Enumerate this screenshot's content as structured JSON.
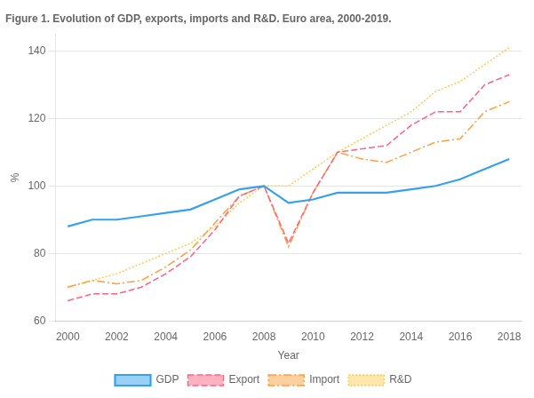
{
  "chart_data": {
    "type": "line",
    "title": "Figure 1. Evolution of GDP, exports, imports and R&D. Euro area, 2000-2019.",
    "x_label": "Year",
    "y_label": "%",
    "x": [
      2000,
      2001,
      2002,
      2003,
      2004,
      2005,
      2006,
      2007,
      2008,
      2009,
      2010,
      2011,
      2012,
      2013,
      2014,
      2015,
      2016,
      2017,
      2018
    ],
    "series": [
      {
        "name": "GDP",
        "line_style": "solid",
        "values": [
          88,
          90,
          90,
          91,
          92,
          93,
          96,
          99,
          100,
          95,
          96,
          98,
          98,
          98,
          99,
          100,
          102,
          105,
          108
        ]
      },
      {
        "name": "Export",
        "line_style": "dashed",
        "values": [
          66,
          68,
          68,
          70,
          74,
          79,
          87,
          97,
          100,
          83,
          98,
          110,
          111,
          112,
          118,
          122,
          122,
          130,
          133
        ]
      },
      {
        "name": "Import",
        "line_style": "dashdot",
        "values": [
          70,
          72,
          71,
          72,
          76,
          81,
          89,
          97,
          100,
          82,
          98,
          110,
          108,
          107,
          110,
          113,
          114,
          122,
          125
        ]
      },
      {
        "name": "R&D",
        "line_style": "dotted",
        "values": [
          70,
          72,
          74,
          77,
          80,
          83,
          88,
          95,
          100,
          100,
          105,
          110,
          114,
          118,
          122,
          128,
          131,
          136,
          141
        ]
      }
    ],
    "xlim": [
      1999.5,
      2018.5
    ],
    "xticks": [
      2000,
      2002,
      2004,
      2006,
      2008,
      2010,
      2012,
      2014,
      2016,
      2018
    ],
    "ylim": [
      60,
      145
    ],
    "yticks": [
      60,
      80,
      100,
      120,
      140
    ],
    "grid": "y",
    "legend": "bottom"
  }
}
